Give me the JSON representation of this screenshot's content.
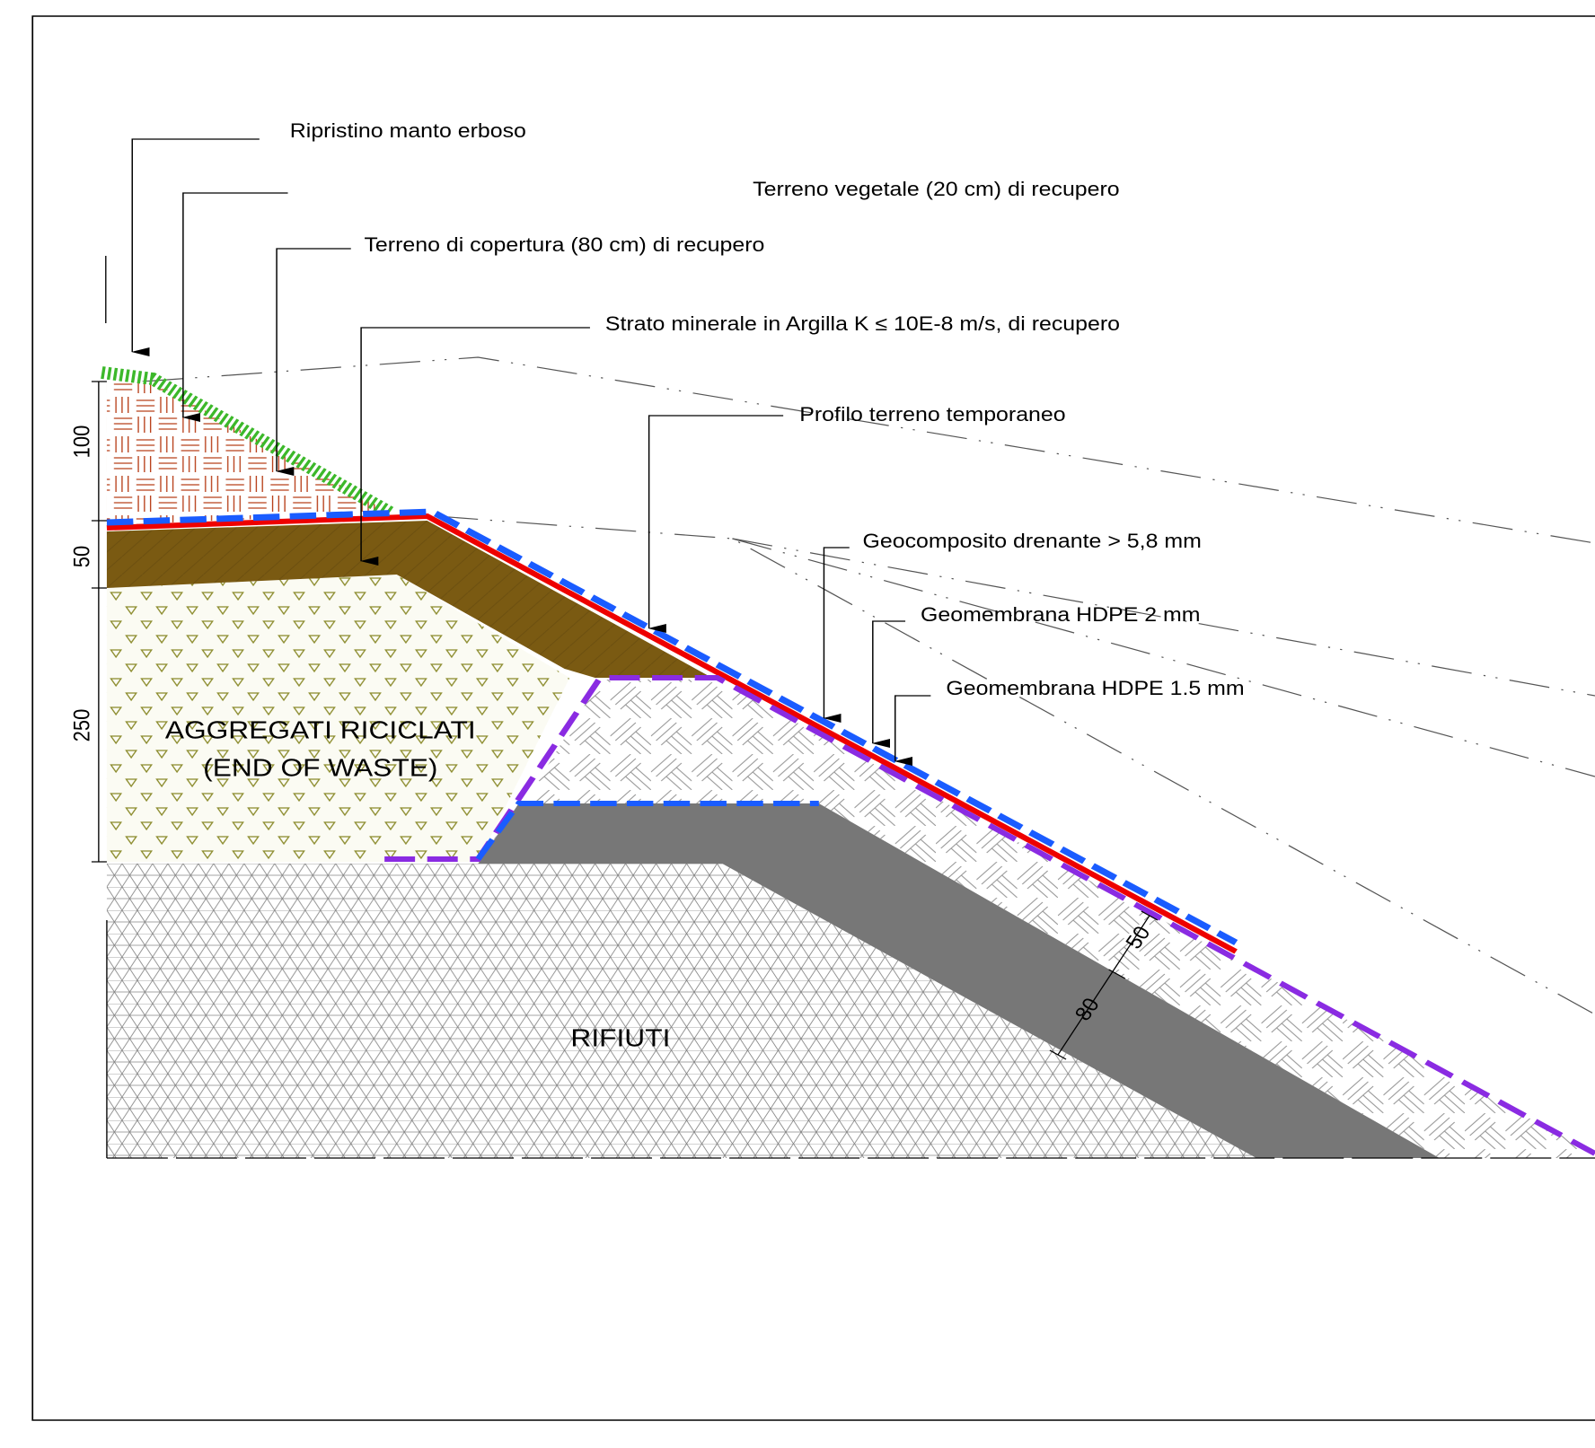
{
  "labels": [
    "Ripristino manto erboso",
    "Terreno vegetale (20 cm)  di recupero",
    "Terreno di copertura (80 cm)  di recupero",
    "Strato minerale in Argilla K ≤ 10E-8 m/s, di recupero",
    "Profilo terreno temporaneo",
    "Geocomposito drenante > 5,8 mm",
    "Geomembrana HDPE 2 mm",
    "Geomembrana HDPE 1.5 mm"
  ],
  "regions": [
    "AGGREGATI RICICLATI",
    "(END OF WASTE)",
    "RIFIUTI"
  ],
  "dimensions": [
    100,
    50,
    250,
    50,
    80
  ]
}
